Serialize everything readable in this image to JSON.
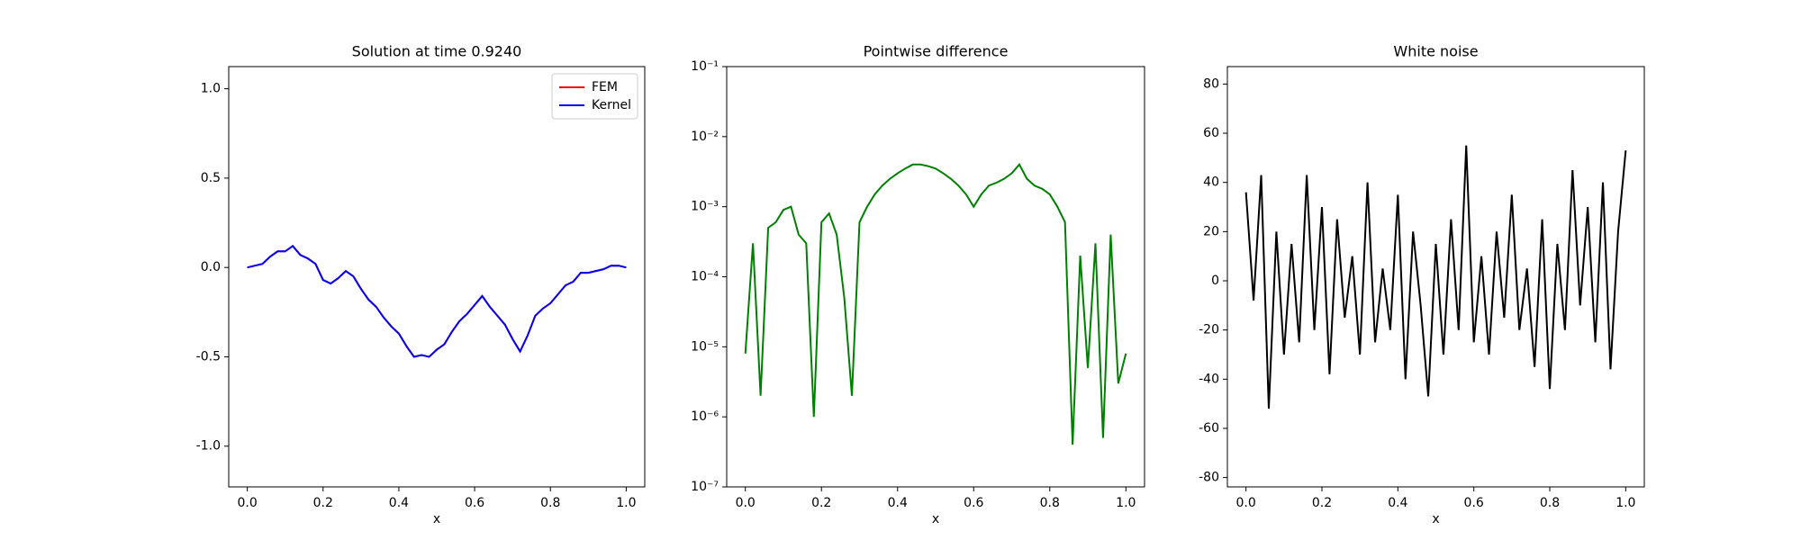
{
  "chart_data": [
    {
      "type": "line",
      "title": "Solution at time 0.9240",
      "xlabel": "x",
      "legend": "upper right",
      "x": [
        0,
        0.02,
        0.04,
        0.06,
        0.08,
        0.1,
        0.12,
        0.14,
        0.16,
        0.18,
        0.2,
        0.22,
        0.24,
        0.26,
        0.28,
        0.3,
        0.32,
        0.34,
        0.36,
        0.38,
        0.4,
        0.42,
        0.44,
        0.46,
        0.48,
        0.5,
        0.52,
        0.54,
        0.56,
        0.58,
        0.6,
        0.62,
        0.64,
        0.66,
        0.68,
        0.7,
        0.72,
        0.74,
        0.76,
        0.78,
        0.8,
        0.82,
        0.84,
        0.86,
        0.88,
        0.9,
        0.92,
        0.94,
        0.96,
        0.98,
        1
      ],
      "series": [
        {
          "name": "FEM",
          "color": "#ff0000",
          "values": [
            0,
            0.01,
            0.02,
            0.06,
            0.09,
            0.09,
            0.12,
            0.07,
            0.05,
            0.02,
            -0.07,
            -0.09,
            -0.06,
            -0.02,
            -0.05,
            -0.12,
            -0.18,
            -0.22,
            -0.28,
            -0.33,
            -0.37,
            -0.44,
            -0.5,
            -0.49,
            -0.5,
            -0.46,
            -0.43,
            -0.36,
            -0.3,
            -0.26,
            -0.21,
            -0.16,
            -0.22,
            -0.27,
            -0.32,
            -0.4,
            -0.47,
            -0.38,
            -0.27,
            -0.23,
            -0.2,
            -0.15,
            -0.1,
            -0.08,
            -0.03,
            -0.03,
            -0.02,
            -0.01,
            0.01,
            0.01,
            0
          ]
        },
        {
          "name": "Kernel",
          "color": "#0000ff",
          "values": [
            0,
            0.01,
            0.02,
            0.06,
            0.09,
            0.09,
            0.12,
            0.07,
            0.05,
            0.02,
            -0.07,
            -0.09,
            -0.06,
            -0.02,
            -0.05,
            -0.12,
            -0.18,
            -0.22,
            -0.28,
            -0.33,
            -0.37,
            -0.44,
            -0.5,
            -0.49,
            -0.5,
            -0.46,
            -0.43,
            -0.36,
            -0.3,
            -0.26,
            -0.21,
            -0.16,
            -0.22,
            -0.27,
            -0.32,
            -0.4,
            -0.47,
            -0.38,
            -0.27,
            -0.23,
            -0.2,
            -0.15,
            -0.1,
            -0.08,
            -0.03,
            -0.03,
            -0.02,
            -0.01,
            0.01,
            0.01,
            0
          ]
        }
      ],
      "xlim": [
        -0.049,
        1.049
      ],
      "xticks": [
        {
          "value": 0,
          "label": "0.0"
        },
        0.2,
        0.4,
        0.6,
        0.8,
        {
          "value": 1,
          "label": "1.0"
        }
      ],
      "ylim": [
        -1.228,
        1.124
      ],
      "yticks": [
        {
          "value": -1,
          "label": "-1.0"
        },
        -0.5,
        {
          "value": 0,
          "label": "0.0"
        },
        0.5,
        {
          "value": 1,
          "label": "1.0"
        }
      ]
    },
    {
      "type": "line",
      "title": "Pointwise difference",
      "xlabel": "x",
      "log_y": true,
      "x": [
        0,
        0.02,
        0.04,
        0.06,
        0.08,
        0.1,
        0.12,
        0.14,
        0.16,
        0.18,
        0.2,
        0.22,
        0.24,
        0.26,
        0.28,
        0.3,
        0.32,
        0.34,
        0.36,
        0.38,
        0.4,
        0.42,
        0.44,
        0.46,
        0.48,
        0.5,
        0.52,
        0.54,
        0.56,
        0.58,
        0.6,
        0.62,
        0.64,
        0.66,
        0.68,
        0.7,
        0.72,
        0.74,
        0.76,
        0.78,
        0.8,
        0.82,
        0.84,
        0.86,
        0.88,
        0.9,
        0.92,
        0.94,
        0.96,
        0.98,
        1
      ],
      "series": [
        {
          "color": "#008000",
          "values": [
            8e-06,
            0.0003,
            2e-06,
            0.0005,
            0.0006,
            0.0009,
            0.001,
            0.0004,
            0.0003,
            1e-06,
            0.0006,
            0.0008,
            0.0004,
            5e-05,
            2e-06,
            0.0006,
            0.001,
            0.0015,
            0.002,
            0.0025,
            0.003,
            0.0035,
            0.004,
            0.004,
            0.0038,
            0.0035,
            0.003,
            0.0025,
            0.002,
            0.0015,
            0.001,
            0.0015,
            0.002,
            0.0022,
            0.0025,
            0.003,
            0.004,
            0.0025,
            0.002,
            0.0018,
            0.0015,
            0.001,
            0.0006,
            4e-07,
            0.0002,
            5e-06,
            0.0003,
            5e-07,
            0.0004,
            3e-06,
            8e-06
          ]
        }
      ],
      "xlim": [
        -0.049,
        1.049
      ],
      "xticks": [
        {
          "value": 0,
          "label": "0.0"
        },
        0.2,
        0.4,
        0.6,
        0.8,
        {
          "value": 1,
          "label": "1.0"
        }
      ],
      "ylim": [
        1e-07,
        0.1
      ],
      "yticks": [
        {
          "value": 1e-07,
          "label": "10⁻⁷"
        },
        {
          "value": 1e-06,
          "label": "10⁻⁶"
        },
        {
          "value": 1e-05,
          "label": "10⁻⁵"
        },
        {
          "value": 0.0001,
          "label": "10⁻⁴"
        },
        {
          "value": 0.001,
          "label": "10⁻³"
        },
        {
          "value": 0.01,
          "label": "10⁻²"
        },
        {
          "value": 0.1,
          "label": "10⁻¹"
        }
      ]
    },
    {
      "type": "line",
      "title": "White noise",
      "xlabel": "x",
      "x": [
        0,
        0.02,
        0.04,
        0.06,
        0.08,
        0.1,
        0.12,
        0.14,
        0.16,
        0.18,
        0.2,
        0.22,
        0.24,
        0.26,
        0.28,
        0.3,
        0.32,
        0.34,
        0.36,
        0.38,
        0.4,
        0.42,
        0.44,
        0.46,
        0.48,
        0.5,
        0.52,
        0.54,
        0.56,
        0.58,
        0.6,
        0.62,
        0.64,
        0.66,
        0.68,
        0.7,
        0.72,
        0.74,
        0.76,
        0.78,
        0.8,
        0.82,
        0.84,
        0.86,
        0.88,
        0.9,
        0.92,
        0.94,
        0.96,
        0.98,
        1
      ],
      "series": [
        {
          "color": "#000000",
          "values": [
            36,
            -8,
            43,
            -52,
            20,
            -30,
            15,
            -25,
            43,
            -20,
            30,
            -38,
            25,
            -15,
            10,
            -30,
            40,
            -25,
            5,
            -20,
            35,
            -40,
            20,
            -10,
            -47,
            15,
            -30,
            25,
            -20,
            55,
            -25,
            10,
            -30,
            20,
            -15,
            35,
            -20,
            5,
            -35,
            25,
            -44,
            15,
            -20,
            45,
            -10,
            30,
            -25,
            40,
            -36,
            20,
            53
          ]
        }
      ],
      "xlim": [
        -0.049,
        1.049
      ],
      "xticks": [
        {
          "value": 0,
          "label": "0.0"
        },
        0.2,
        0.4,
        0.6,
        0.8,
        {
          "value": 1,
          "label": "1.0"
        }
      ],
      "ylim": [
        -83.8,
        87.1
      ],
      "yticks": [
        -80,
        -60,
        -40,
        -20,
        0,
        20,
        40,
        60,
        80
      ]
    }
  ]
}
